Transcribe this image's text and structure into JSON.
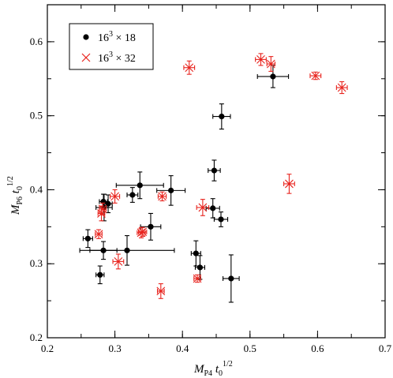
{
  "chart_data": {
    "type": "scatter",
    "xlabel": {
      "main": "M",
      "sub": "P4",
      "mid": " t",
      "sub2": "0",
      "sup": "1/2"
    },
    "ylabel": {
      "main": "M",
      "sub": "P6",
      "mid": " t",
      "sub2": "0",
      "sup": "1/2"
    },
    "xlim": [
      0.2,
      0.7
    ],
    "ylim": [
      0.2,
      0.65
    ],
    "xticks": [
      "0.2",
      "0.3",
      "0.4",
      "0.5",
      "0.6",
      "0.7"
    ],
    "yticks": [
      "0.2",
      "0.3",
      "0.4",
      "0.5",
      "0.6"
    ],
    "xtick_values": [
      0.2,
      0.3,
      0.4,
      0.5,
      0.6,
      0.7
    ],
    "ytick_values": [
      0.2,
      0.3,
      0.4,
      0.5,
      0.6
    ],
    "legend_position": "top-left",
    "series": [
      {
        "name": {
          "base": "16",
          "sup": "3",
          "rest": " × 18"
        },
        "marker": "circle",
        "color": "#000000",
        "points": [
          {
            "x": 0.26,
            "xerr": 0.007,
            "y": 0.334,
            "yerr": 0.012
          },
          {
            "x": 0.278,
            "xerr": 0.006,
            "y": 0.285,
            "yerr": 0.012
          },
          {
            "x": 0.283,
            "xerr": 0.02,
            "y": 0.318,
            "yerr": 0.012
          },
          {
            "x": 0.283,
            "xerr": 0.006,
            "y": 0.384,
            "yerr": 0.01
          },
          {
            "x": 0.284,
            "xerr": 0.012,
            "y": 0.376,
            "yerr": 0.018
          },
          {
            "x": 0.29,
            "xerr": 0.006,
            "y": 0.381,
            "yerr": 0.012
          },
          {
            "x": 0.326,
            "xerr": 0.008,
            "y": 0.393,
            "yerr": 0.01
          },
          {
            "x": 0.337,
            "xerr": 0.035,
            "y": 0.406,
            "yerr": 0.018
          },
          {
            "x": 0.353,
            "xerr": 0.015,
            "y": 0.35,
            "yerr": 0.018
          },
          {
            "x": 0.318,
            "xerr": 0.07,
            "y": 0.318,
            "yerr": 0.02
          },
          {
            "x": 0.383,
            "xerr": 0.021,
            "y": 0.399,
            "yerr": 0.02
          },
          {
            "x": 0.42,
            "xerr": 0.007,
            "y": 0.314,
            "yerr": 0.017
          },
          {
            "x": 0.426,
            "xerr": 0.007,
            "y": 0.295,
            "yerr": 0.016
          },
          {
            "x": 0.447,
            "xerr": 0.009,
            "y": 0.426,
            "yerr": 0.014
          },
          {
            "x": 0.445,
            "xerr": 0.01,
            "y": 0.375,
            "yerr": 0.013
          },
          {
            "x": 0.457,
            "xerr": 0.01,
            "y": 0.36,
            "yerr": 0.01
          },
          {
            "x": 0.458,
            "xerr": 0.013,
            "y": 0.499,
            "yerr": 0.017
          },
          {
            "x": 0.472,
            "xerr": 0.012,
            "y": 0.28,
            "yerr": 0.032
          },
          {
            "x": 0.534,
            "xerr": 0.023,
            "y": 0.553,
            "yerr": 0.015
          }
        ]
      },
      {
        "name": {
          "base": "16",
          "sup": "3",
          "rest": " × 32"
        },
        "marker": "cross",
        "color": "#e8231d",
        "points": [
          {
            "x": 0.276,
            "xerr": 0.005,
            "y": 0.34,
            "yerr": 0.006
          },
          {
            "x": 0.28,
            "xerr": 0.005,
            "y": 0.368,
            "yerr": 0.01
          },
          {
            "x": 0.282,
            "xerr": 0.005,
            "y": 0.374,
            "yerr": 0.008
          },
          {
            "x": 0.3,
            "xerr": 0.007,
            "y": 0.391,
            "yerr": 0.009
          },
          {
            "x": 0.305,
            "xerr": 0.008,
            "y": 0.303,
            "yerr": 0.01
          },
          {
            "x": 0.339,
            "xerr": 0.006,
            "y": 0.342,
            "yerr": 0.007
          },
          {
            "x": 0.341,
            "xerr": 0.006,
            "y": 0.343,
            "yerr": 0.006
          },
          {
            "x": 0.368,
            "xerr": 0.005,
            "y": 0.263,
            "yerr": 0.01
          },
          {
            "x": 0.37,
            "xerr": 0.006,
            "y": 0.391,
            "yerr": 0.006
          },
          {
            "x": 0.41,
            "xerr": 0.008,
            "y": 0.565,
            "yerr": 0.009
          },
          {
            "x": 0.422,
            "xerr": 0.005,
            "y": 0.28,
            "yerr": 0.005
          },
          {
            "x": 0.43,
            "xerr": 0.009,
            "y": 0.376,
            "yerr": 0.011
          },
          {
            "x": 0.516,
            "xerr": 0.008,
            "y": 0.576,
            "yerr": 0.008
          },
          {
            "x": 0.531,
            "xerr": 0.006,
            "y": 0.57,
            "yerr": 0.01
          },
          {
            "x": 0.558,
            "xerr": 0.008,
            "y": 0.408,
            "yerr": 0.013
          },
          {
            "x": 0.597,
            "xerr": 0.008,
            "y": 0.554,
            "yerr": 0.005
          },
          {
            "x": 0.636,
            "xerr": 0.008,
            "y": 0.538,
            "yerr": 0.008
          }
        ]
      }
    ]
  }
}
